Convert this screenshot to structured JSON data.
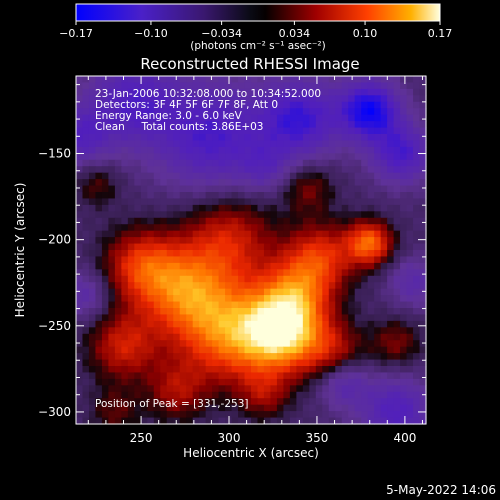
{
  "chart_data": {
    "type": "heatmap",
    "title": "Reconstructed RHESSI Image",
    "xlabel": "Heliocentric X (arcsec)",
    "ylabel": "Heliocentric Y (arcsec)",
    "xlim": [
      213,
      412
    ],
    "ylim": [
      -307,
      -105
    ],
    "x_ticks": [
      250,
      300,
      350,
      400
    ],
    "x_tick_labels": [
      "250",
      "300",
      "350",
      "400"
    ],
    "y_ticks": [
      -150,
      -200,
      -250,
      -300
    ],
    "y_tick_labels": [
      "−150",
      "−200",
      "−250",
      "−300"
    ],
    "colorbar": {
      "range": [
        -0.17,
        0.17
      ],
      "ticks": [
        -0.17,
        -0.1,
        -0.034,
        0.034,
        0.1,
        0.17
      ],
      "tick_labels": [
        "−0.17",
        "−0.10",
        "−0.034",
        "0.034",
        "0.10",
        "0.17"
      ],
      "units_label": "(photons cm⁻² s⁻¹ asec⁻²)",
      "colors": [
        "#0000ff",
        "#5a1aa8",
        "#1a1030",
        "#000000",
        "#8a0000",
        "#ff2a00",
        "#ff9a00",
        "#ffff80"
      ]
    },
    "annotations": [
      "23-Jan-2006 10:32:08.000 to 10:34:52.000",
      "Detectors: 3F 4F 5F 6F 7F 8F, Att 0",
      "Energy Range: 3.0 - 6.0 keV",
      "Clean     Total counts: 3.86E+03",
      "Position of Peak = [331,-253]"
    ],
    "peak": [
      331,
      -253
    ],
    "blobs": [
      {
        "x": 331,
        "y": -253,
        "s": 16,
        "a": 0.17
      },
      {
        "x": 300,
        "y": -255,
        "s": 20,
        "a": 0.12
      },
      {
        "x": 275,
        "y": -230,
        "s": 18,
        "a": 0.11
      },
      {
        "x": 250,
        "y": -215,
        "s": 15,
        "a": 0.09
      },
      {
        "x": 240,
        "y": -262,
        "s": 14,
        "a": 0.08
      },
      {
        "x": 300,
        "y": -200,
        "s": 18,
        "a": 0.08
      },
      {
        "x": 352,
        "y": -210,
        "s": 14,
        "a": 0.09
      },
      {
        "x": 380,
        "y": -202,
        "s": 9,
        "a": 0.12
      },
      {
        "x": 338,
        "y": -230,
        "s": 14,
        "a": 0.08
      },
      {
        "x": 360,
        "y": -265,
        "s": 12,
        "a": 0.06
      },
      {
        "x": 270,
        "y": -288,
        "s": 12,
        "a": 0.06
      },
      {
        "x": 320,
        "y": -290,
        "s": 10,
        "a": 0.05
      },
      {
        "x": 225,
        "y": -168,
        "s": 9,
        "a": 0.04
      },
      {
        "x": 345,
        "y": -170,
        "s": 10,
        "a": 0.05
      },
      {
        "x": 395,
        "y": -260,
        "s": 10,
        "a": 0.05
      },
      {
        "x": 235,
        "y": -300,
        "s": 10,
        "a": 0.04
      },
      {
        "x": 290,
        "y": -140,
        "s": 22,
        "a": -0.09
      },
      {
        "x": 245,
        "y": -120,
        "s": 18,
        "a": -0.08
      },
      {
        "x": 340,
        "y": -130,
        "s": 16,
        "a": -0.1
      },
      {
        "x": 380,
        "y": -125,
        "s": 12,
        "a": -0.13
      },
      {
        "x": 398,
        "y": -150,
        "s": 12,
        "a": -0.09
      },
      {
        "x": 215,
        "y": -140,
        "s": 12,
        "a": -0.07
      },
      {
        "x": 395,
        "y": -300,
        "s": 14,
        "a": -0.08
      },
      {
        "x": 365,
        "y": -283,
        "s": 10,
        "a": -0.06
      },
      {
        "x": 218,
        "y": -232,
        "s": 10,
        "a": -0.05
      },
      {
        "x": 405,
        "y": -225,
        "s": 10,
        "a": -0.05
      },
      {
        "x": 320,
        "y": -158,
        "s": 10,
        "a": -0.04
      }
    ],
    "grid": false
  },
  "footer": {
    "timestamp": "5-May-2022 14:06"
  }
}
